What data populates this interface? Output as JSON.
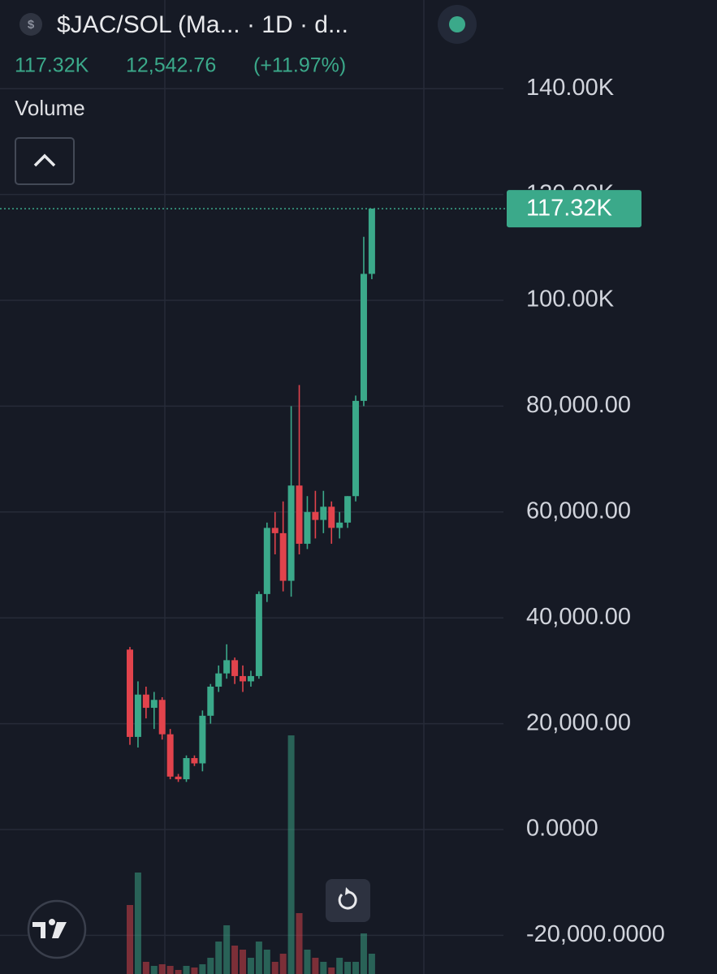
{
  "chart_data": {
    "type": "candlestick",
    "title": "$JAC/SOL (Ma... · 1D · d...",
    "last_value": "117.32K",
    "change": "12,542.76",
    "change_pct": "(+11.97%)",
    "up_color": "#3ba98a",
    "down_color": "#e2434c",
    "grid": true,
    "ylim": [
      -27300,
      156750
    ],
    "yticks": [
      {
        "value": 140000,
        "label": "140.00K"
      },
      {
        "value": 120000,
        "label": "120.00K"
      },
      {
        "value": 100000,
        "label": "100.00K"
      },
      {
        "value": 80000,
        "label": "80,000.00"
      },
      {
        "value": 60000,
        "label": "60,000.00"
      },
      {
        "value": 40000,
        "label": "40,000.00"
      },
      {
        "value": 20000,
        "label": "20,000.00"
      },
      {
        "value": 0,
        "label": "0.0000"
      },
      {
        "value": -20000,
        "label": "-20,000.0000"
      }
    ],
    "last_price": {
      "value": 117320,
      "label": "117.32K"
    },
    "open": [
      34000,
      17500,
      25500,
      23000,
      24500,
      18000,
      10000,
      9500,
      13500,
      12500,
      21500,
      27000,
      29500,
      32000,
      29000,
      28000,
      29000,
      44500,
      57000,
      56000,
      47000,
      65000,
      54000,
      60000,
      58500,
      61000,
      57000,
      58000,
      63000,
      81000,
      105000
    ],
    "high": [
      34500,
      28000,
      27000,
      26000,
      25000,
      19000,
      10500,
      14000,
      14000,
      22500,
      27500,
      31000,
      35000,
      32500,
      31000,
      30000,
      45000,
      58000,
      60000,
      62000,
      80000,
      84000,
      63000,
      64000,
      64000,
      62000,
      60000,
      63000,
      82000,
      112000,
      117320
    ],
    "low": [
      16000,
      15500,
      21000,
      19000,
      17000,
      9500,
      9000,
      9000,
      12000,
      11000,
      20000,
      26000,
      28500,
      27500,
      26000,
      27000,
      28500,
      43000,
      52000,
      45000,
      44000,
      52000,
      53000,
      55000,
      56000,
      54000,
      55000,
      57000,
      62000,
      80000,
      104000
    ],
    "close": [
      17500,
      25500,
      23000,
      24500,
      18000,
      10000,
      9500,
      13500,
      12500,
      21500,
      27000,
      29500,
      32000,
      29000,
      28000,
      29000,
      44500,
      57000,
      56000,
      47000,
      65000,
      54000,
      60000,
      58500,
      61000,
      57000,
      58000,
      63000,
      81000,
      105000,
      117320
    ],
    "volume": {
      "name": "Volume",
      "ylim": [
        0,
        300
      ],
      "values": [
        85,
        125,
        15,
        10,
        12,
        10,
        5,
        10,
        8,
        12,
        20,
        40,
        60,
        35,
        30,
        20,
        40,
        30,
        15,
        25,
        294,
        75,
        30,
        20,
        15,
        8,
        20,
        15,
        15,
        50,
        25
      ]
    }
  }
}
